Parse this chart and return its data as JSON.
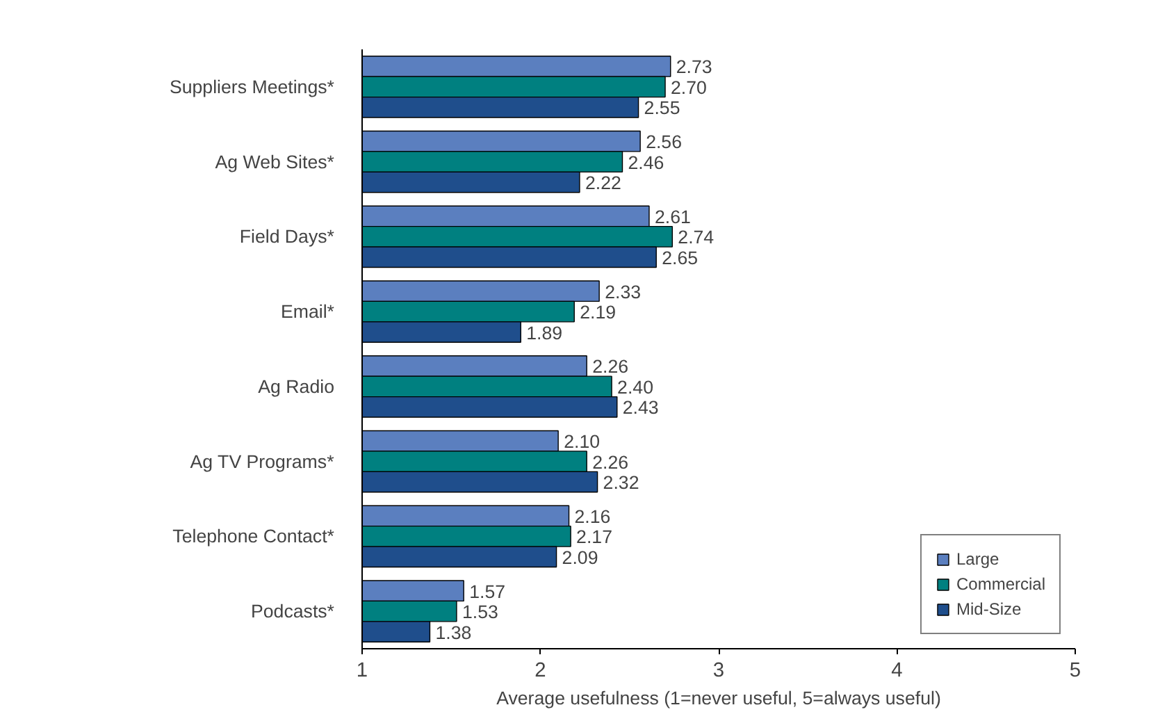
{
  "chart_data": {
    "type": "bar",
    "orientation": "horizontal",
    "xlabel": "Average usefulness (1=never useful, 5=always useful)",
    "categories": [
      "Suppliers Meetings*",
      "Ag Web Sites*",
      "Field Days*",
      "Email*",
      "Ag Radio",
      "Ag TV Programs*",
      "Telephone Contact*",
      "Podcasts*"
    ],
    "series": [
      {
        "name": "Large",
        "color": "#5b7fbf",
        "values": [
          2.73,
          2.56,
          2.61,
          2.33,
          2.26,
          2.1,
          2.16,
          1.57
        ],
        "value_labels": [
          "2.73",
          "2.56",
          "2.61",
          "2.33",
          "2.26",
          "2.10",
          "2.16",
          "1.57"
        ]
      },
      {
        "name": "Commercial",
        "color": "#008080",
        "values": [
          2.7,
          2.46,
          2.74,
          2.19,
          2.4,
          2.26,
          2.17,
          1.53
        ],
        "value_labels": [
          "2.70",
          "2.46",
          "2.74",
          "2.19",
          "2.40",
          "2.26",
          "2.17",
          "1.53"
        ]
      },
      {
        "name": "Mid-Size",
        "color": "#1f4e8c",
        "values": [
          2.55,
          2.22,
          2.65,
          1.89,
          2.43,
          2.32,
          2.09,
          1.38
        ],
        "value_labels": [
          "2.55",
          "2.22",
          "2.65",
          "1.89",
          "2.43",
          "2.32",
          "2.09",
          "1.38"
        ]
      }
    ],
    "xlim": [
      1,
      5
    ],
    "xticks": [
      1,
      2,
      3,
      4,
      5
    ],
    "legend": "bottom right",
    "grid": false
  }
}
